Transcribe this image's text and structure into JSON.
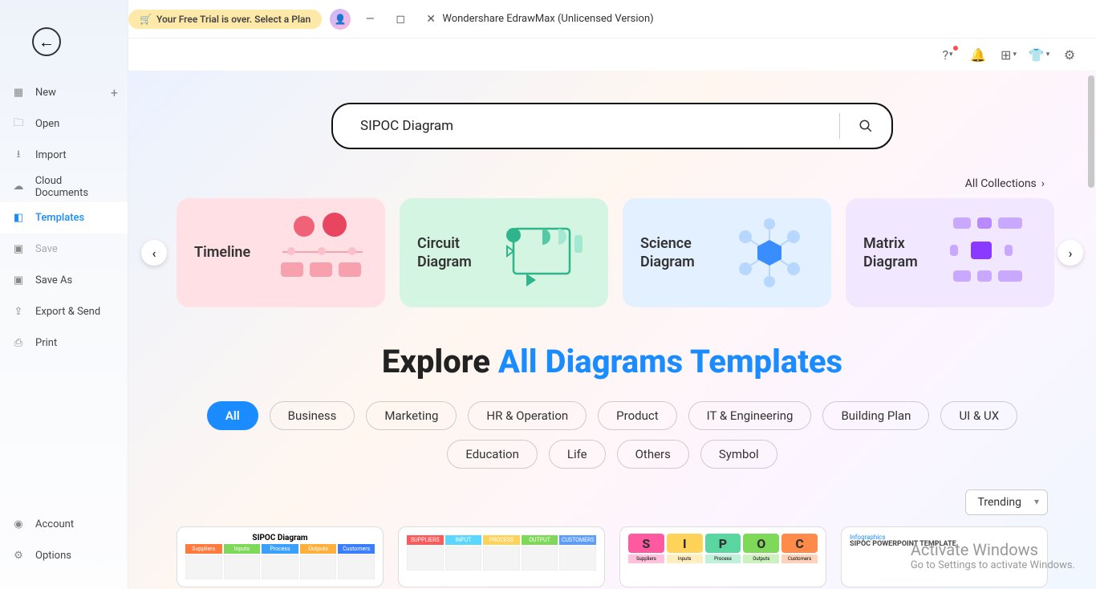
{
  "titlebar": {
    "app_title": "Wondershare EdrawMax (Unlicensed Version)",
    "trial_text": "Your Free Trial is over. Select a Plan"
  },
  "sidebar": {
    "items": [
      {
        "label": "New",
        "icon": "plus-square",
        "has_plus": true
      },
      {
        "label": "Open",
        "icon": "folder"
      },
      {
        "label": "Import",
        "icon": "import"
      },
      {
        "label": "Cloud Documents",
        "icon": "cloud"
      },
      {
        "label": "Templates",
        "icon": "templates",
        "active": true
      },
      {
        "label": "Save",
        "icon": "save",
        "disabled": true
      },
      {
        "label": "Save As",
        "icon": "saveas"
      },
      {
        "label": "Export & Send",
        "icon": "export"
      },
      {
        "label": "Print",
        "icon": "print"
      }
    ],
    "bottom": [
      {
        "label": "Account",
        "icon": "account"
      },
      {
        "label": "Options",
        "icon": "gear"
      }
    ]
  },
  "search": {
    "value": "SIPOC Diagram"
  },
  "all_collections_label": "All Collections",
  "categories": [
    {
      "title": "Timeline",
      "color": "pink"
    },
    {
      "title": "Circuit Diagram",
      "color": "green"
    },
    {
      "title": "Science Diagram",
      "color": "blue"
    },
    {
      "title": "Matrix Diagram",
      "color": "purple"
    }
  ],
  "explore": {
    "prefix": "Explore ",
    "highlight": "All Diagrams Templates"
  },
  "chips": [
    "All",
    "Business",
    "Marketing",
    "HR & Operation",
    "Product",
    "IT & Engineering",
    "Building Plan",
    "UI & UX",
    "Education",
    "Life",
    "Others",
    "Symbol"
  ],
  "chip_active_index": 0,
  "sort": {
    "value": "Trending"
  },
  "templates": [
    {
      "title": "SIPOC Diagram",
      "headers": [
        "Suppliers",
        "Inputs",
        "Process",
        "Outputs",
        "Customers"
      ],
      "header_colors": [
        "#ff7a3c",
        "#7dd957",
        "#3aa0ff",
        "#ffb03a",
        "#3a7dff"
      ]
    },
    {
      "title": "",
      "headers": [
        "SUPPLIERS",
        "INPUT",
        "PROCESS",
        "OUTPUT",
        "CUSTOMERS"
      ],
      "header_colors": [
        "#ff5a5a",
        "#5ad7ff",
        "#ffd25a",
        "#7dd957",
        "#5a9dff"
      ]
    },
    {
      "title": "",
      "sipoc_letters": [
        "S",
        "I",
        "P",
        "O",
        "C"
      ],
      "letter_colors": [
        "#ff5aa0",
        "#ffd25a",
        "#5ad7a0",
        "#7dd957",
        "#ff8a4a"
      ],
      "subheaders": [
        "Suppliers",
        "Inputs",
        "Process",
        "Outputs",
        "Customers"
      ]
    },
    {
      "title_small": "Infographics",
      "title2": "SIPOC POWERPOINT TEMPLATE"
    }
  ],
  "watermark": {
    "line1": "Activate Windows",
    "line2": "Go to Settings to activate Windows."
  },
  "colors": {
    "accent": "#1a8cff"
  }
}
